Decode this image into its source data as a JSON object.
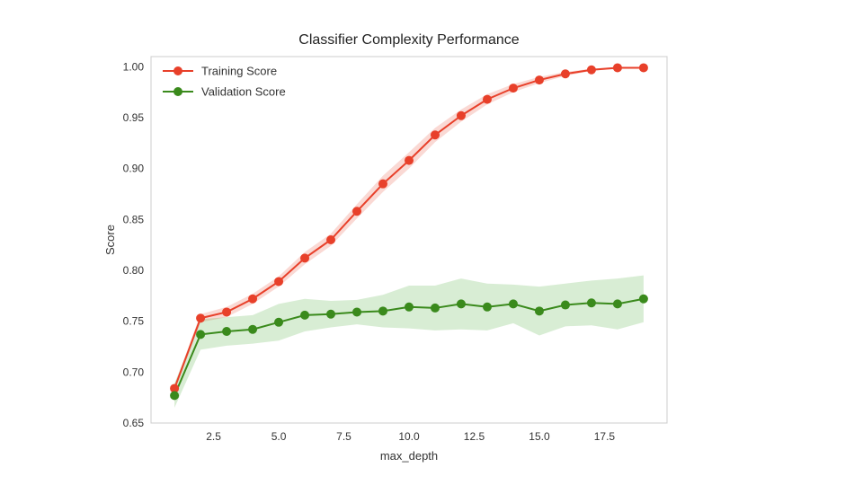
{
  "chart_data": {
    "type": "line",
    "title": "Classifier Complexity Performance",
    "xlabel": "max_depth",
    "ylabel": "Score",
    "xlim": [
      0.1,
      19.9
    ],
    "ylim": [
      0.65,
      1.01
    ],
    "xticks": [
      2.5,
      5.0,
      7.5,
      10.0,
      12.5,
      15.0,
      17.5
    ],
    "xtick_labels": [
      "2.5",
      "5.0",
      "7.5",
      "10.0",
      "12.5",
      "15.0",
      "17.5"
    ],
    "yticks": [
      0.65,
      0.7,
      0.75,
      0.8,
      0.85,
      0.9,
      0.95,
      1.0
    ],
    "ytick_labels": [
      "0.65",
      "0.70",
      "0.75",
      "0.80",
      "0.85",
      "0.90",
      "0.95",
      "1.00"
    ],
    "grid": false,
    "legend_position": "top-left",
    "x": [
      1,
      2,
      3,
      4,
      5,
      6,
      7,
      8,
      9,
      10,
      11,
      12,
      13,
      14,
      15,
      16,
      17,
      18,
      19
    ],
    "series": [
      {
        "name": "Training Score",
        "color": "#e8402a",
        "band_color": "#e8402a",
        "values": [
          0.684,
          0.753,
          0.759,
          0.772,
          0.789,
          0.812,
          0.83,
          0.858,
          0.885,
          0.908,
          0.933,
          0.952,
          0.968,
          0.979,
          0.987,
          0.993,
          0.997,
          0.999,
          0.999
        ],
        "lower": [
          0.681,
          0.749,
          0.754,
          0.767,
          0.784,
          0.806,
          0.824,
          0.851,
          0.877,
          0.9,
          0.926,
          0.946,
          0.963,
          0.975,
          0.984,
          0.991,
          0.996,
          0.998,
          0.999
        ],
        "upper": [
          0.687,
          0.757,
          0.764,
          0.777,
          0.794,
          0.818,
          0.836,
          0.865,
          0.893,
          0.916,
          0.94,
          0.958,
          0.973,
          0.983,
          0.99,
          0.995,
          0.998,
          1.0,
          1.0
        ]
      },
      {
        "name": "Validation Score",
        "color": "#3a8a1c",
        "band_color": "#4caf3c",
        "values": [
          0.677,
          0.737,
          0.74,
          0.742,
          0.749,
          0.756,
          0.757,
          0.759,
          0.76,
          0.764,
          0.763,
          0.767,
          0.764,
          0.767,
          0.76,
          0.766,
          0.768,
          0.767,
          0.772
        ],
        "lower": [
          0.665,
          0.722,
          0.726,
          0.728,
          0.731,
          0.74,
          0.744,
          0.747,
          0.744,
          0.743,
          0.741,
          0.742,
          0.741,
          0.748,
          0.736,
          0.745,
          0.746,
          0.742,
          0.749
        ],
        "upper": [
          0.689,
          0.752,
          0.754,
          0.756,
          0.767,
          0.772,
          0.77,
          0.771,
          0.776,
          0.785,
          0.785,
          0.792,
          0.787,
          0.786,
          0.784,
          0.787,
          0.79,
          0.792,
          0.795
        ]
      }
    ]
  }
}
